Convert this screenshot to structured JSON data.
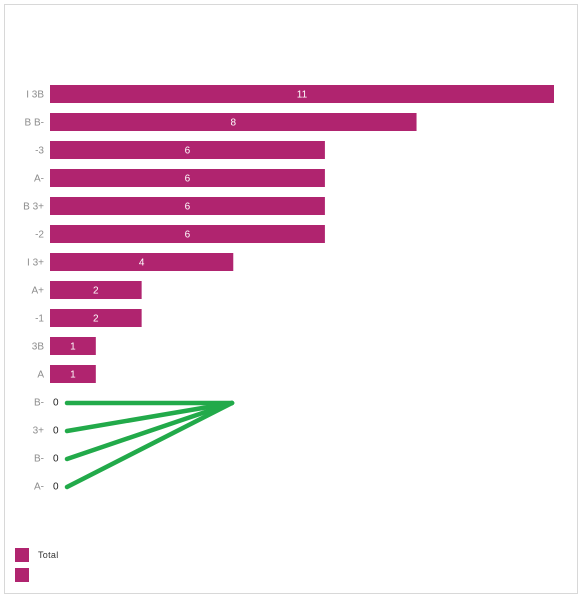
{
  "colors": {
    "bar": "#b0246f",
    "annotation": "#22aa4a",
    "value_label_inside": "#ffffff",
    "value_label_zero": "#222222",
    "category_label": "#8c8c8c"
  },
  "chart_data": {
    "type": "bar",
    "orientation": "horizontal",
    "categories": [
      "I 3B",
      "B  B-",
      "-3",
      "A-",
      "B  3+",
      "-2",
      "I 3+",
      "A+",
      "-1",
      "3B",
      "A",
      "B-",
      "3+",
      "B-",
      "A-"
    ],
    "series": [
      {
        "name": "Total",
        "values": [
          11,
          8,
          6,
          6,
          6,
          6,
          4,
          2,
          2,
          1,
          1,
          0,
          0,
          0,
          0
        ]
      }
    ],
    "xlim": [
      0,
      11
    ],
    "grid": false,
    "legend_position": "bottom-left",
    "annotation": "green fan of strokes drawn over the zero-value rows"
  },
  "legend": {
    "items": [
      {
        "label": "Total"
      },
      {
        "label": ""
      }
    ]
  }
}
